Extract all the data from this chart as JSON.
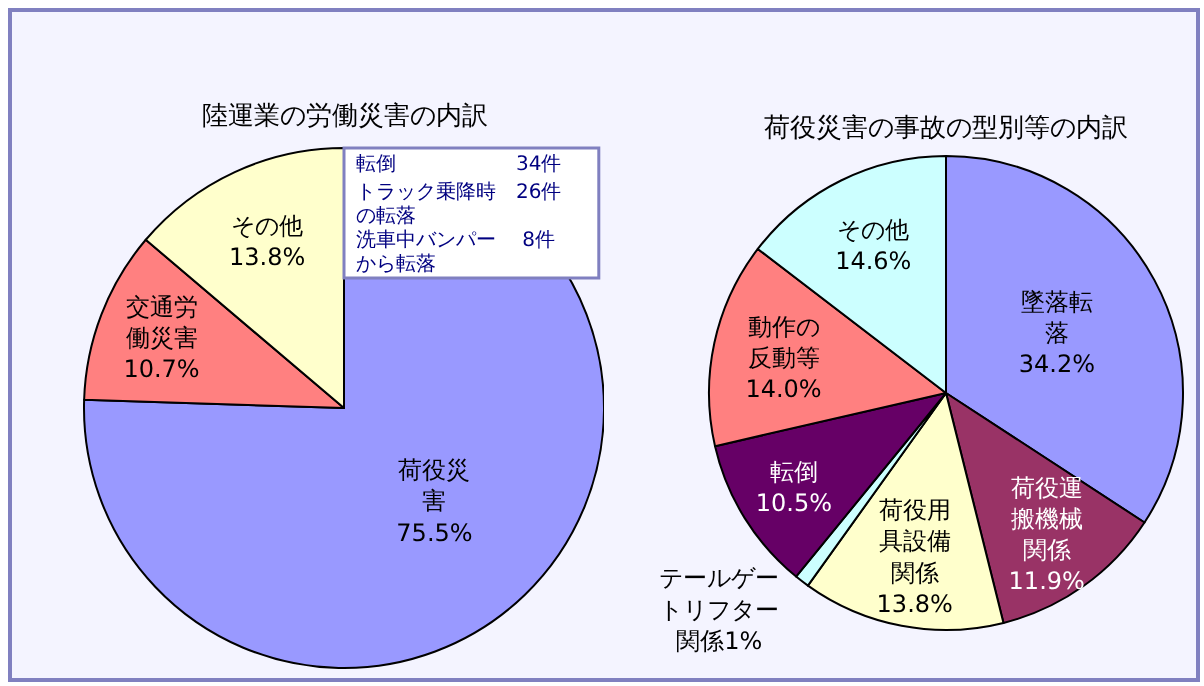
{
  "chart_data": [
    {
      "type": "pie",
      "title": "陸運業の労働災害の内訳",
      "categories": [
        "荷役災害",
        "交通労働災害",
        "その他"
      ],
      "values": [
        75.5,
        10.7,
        13.8
      ],
      "value_labels": [
        "75.5%",
        "10.7%",
        "13.8%"
      ],
      "colors": [
        "#9999ff",
        "#ff8080",
        "#ffffcc"
      ],
      "data_labels": true,
      "annotations": [
        "転倒　　　　　　34件",
        "トラック乗降時　26件",
        "の転落",
        "洗車中バンパー　 8件",
        "から転落"
      ]
    },
    {
      "type": "pie",
      "title": "荷役災害の事故の型別等の内訳",
      "categories": [
        "墜落転落",
        "荷役運搬機械関係",
        "荷役用具設備関係",
        "テールゲートリフター関係",
        "転倒",
        "動作の反動等",
        "その他"
      ],
      "values": [
        34.2,
        11.9,
        13.8,
        1,
        10.5,
        14.0,
        14.6
      ],
      "value_labels": [
        "34.2%",
        "11.9%",
        "13.8%",
        "1%",
        "10.5%",
        "14.0%",
        "14.6%"
      ],
      "colors": [
        "#9999ff",
        "#993366",
        "#ffffcc",
        "#ccffff",
        "#660066",
        "#ff8080",
        "#ccffff"
      ],
      "data_labels": true
    }
  ]
}
